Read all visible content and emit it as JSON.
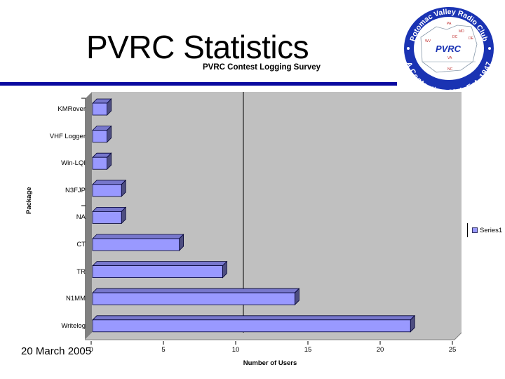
{
  "slide": {
    "title": "PVRC Statistics",
    "subtitle": "PVRC Contest Logging Survey",
    "date": "20 March 2005",
    "rule_color": "#0a0aa0"
  },
  "logo": {
    "top_text": "Potomac Valley Radio Club",
    "bottom_text": "A Contesting Club Est. 1947",
    "center_text": "PVRC",
    "state_labels": [
      "PA",
      "MD",
      "DC",
      "DE",
      "WV",
      "VA",
      "NC"
    ],
    "ring_color": "#1a33b3"
  },
  "chart_data": {
    "type": "bar",
    "orientation": "horizontal",
    "style": "3d",
    "title": "PVRC Contest Logging Survey",
    "xlabel": "Number of Users",
    "ylabel": "Package",
    "categories": [
      "KMRover",
      "VHF Logger",
      "Win-LQI",
      "N3FJP",
      "NA",
      "CT",
      "TR",
      "N1MM",
      "Writelog"
    ],
    "series": [
      {
        "name": "Series1",
        "values": [
          1,
          1,
          1,
          2,
          2,
          6,
          9,
          14,
          22
        ],
        "color": "#9999ff"
      }
    ],
    "xlim": [
      0,
      25
    ],
    "xticks": [
      0,
      5,
      10,
      15,
      20,
      25
    ],
    "grid": false,
    "legend_position": "right",
    "plot_background": "#c0c0c0"
  }
}
